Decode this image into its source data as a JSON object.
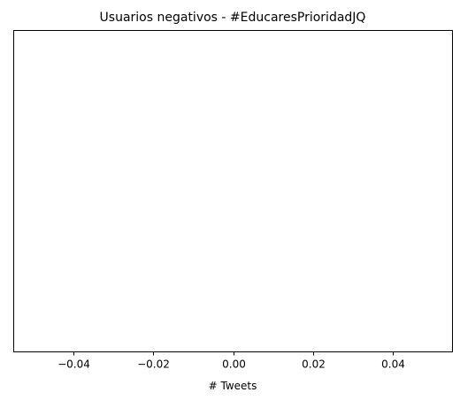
{
  "chart_data": {
    "type": "bar",
    "orientation": "horizontal",
    "title": "Usuarios negativos - #EducaresPrioridadJQ",
    "xlabel": "# Tweets",
    "ylabel": "",
    "categories": [],
    "values": [],
    "xlim": [
      -0.055,
      0.055
    ],
    "xticks": [
      -0.04,
      -0.02,
      0.0,
      0.02,
      0.04
    ],
    "xtick_labels": [
      "−0.04",
      "−0.02",
      "0.00",
      "0.02",
      "0.04"
    ],
    "grid": false
  }
}
